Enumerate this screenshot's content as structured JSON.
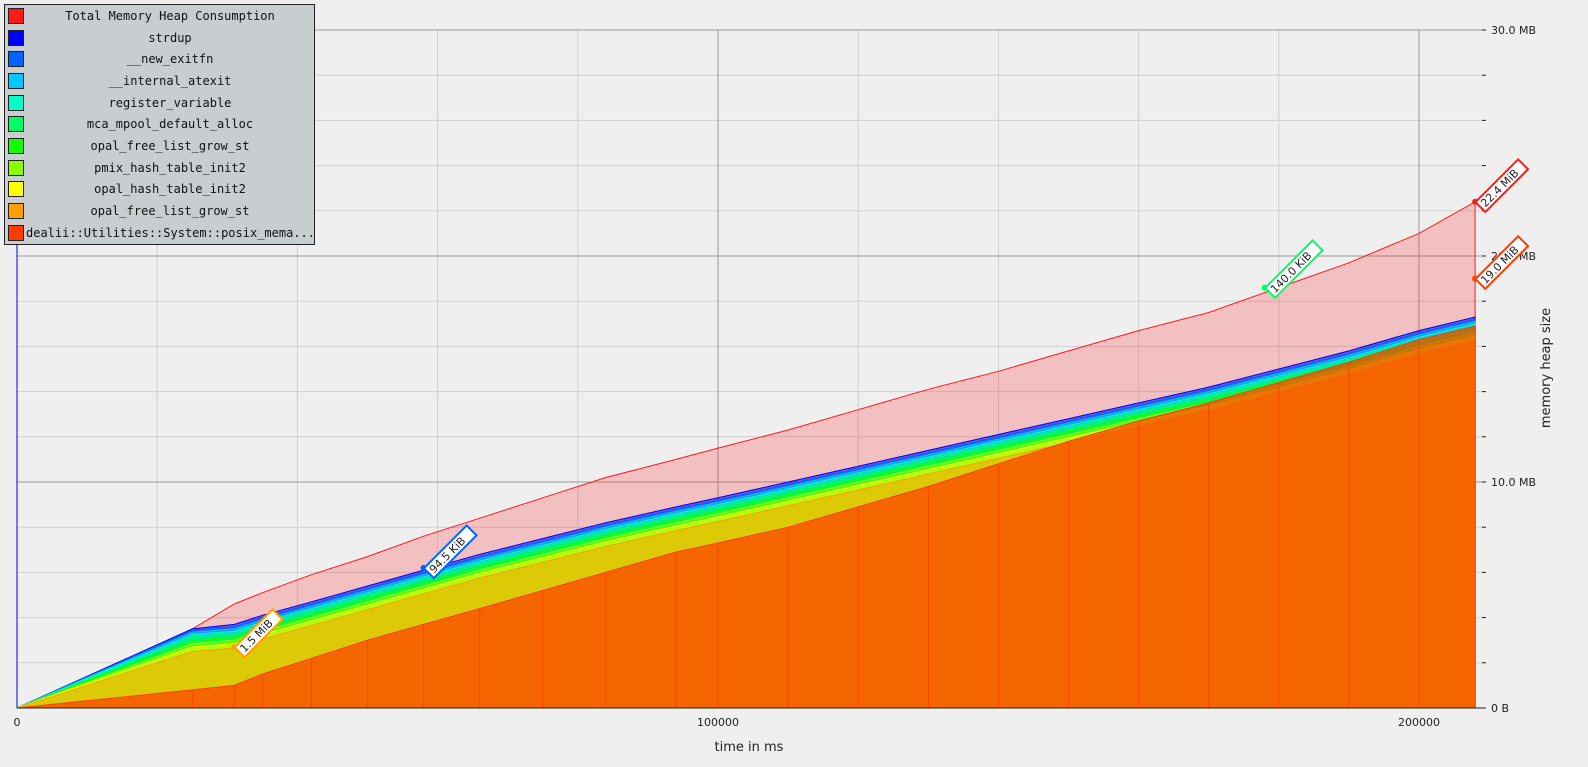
{
  "chart_data": {
    "type": "area",
    "title": "",
    "xlabel": "time in ms",
    "ylabel": "memory heap size",
    "xlim": [
      0,
      208000
    ],
    "ylim": [
      0,
      30
    ],
    "x_ticks": [
      {
        "value": 0,
        "label": "0"
      },
      {
        "value": 100000,
        "label": "100000"
      },
      {
        "value": 200000,
        "label": "200000"
      }
    ],
    "y_ticks": [
      {
        "value": 0,
        "label": "0 B"
      },
      {
        "value": 10,
        "label": "10.0 MB"
      },
      {
        "value": 20,
        "label": "20.0 MB"
      },
      {
        "value": 30,
        "label": "30.0 MB"
      }
    ],
    "grid": true,
    "legend_position": "top-left",
    "x": [
      0,
      25000,
      31000,
      35000,
      42000,
      50000,
      58000,
      66000,
      75000,
      84000,
      94000,
      100000,
      110000,
      120000,
      130000,
      140000,
      150000,
      160000,
      170000,
      180000,
      190000,
      200000,
      208000
    ],
    "series": [
      {
        "name": "Total Memory Heap Consumption",
        "color": "#ff1a1a",
        "values": [
          0,
          3.5,
          4.6,
          5.1,
          5.9,
          6.7,
          7.6,
          8.4,
          9.3,
          10.2,
          11.0,
          11.5,
          12.3,
          13.2,
          14.1,
          14.9,
          15.8,
          16.7,
          17.5,
          18.6,
          19.7,
          21.0,
          22.4
        ]
      },
      {
        "name": "strdup",
        "color": "#0000ff",
        "values": [
          0,
          3.5,
          3.7,
          4.1,
          4.7,
          5.4,
          6.1,
          6.8,
          7.5,
          8.2,
          8.9,
          9.3,
          10.0,
          10.7,
          11.4,
          12.1,
          12.8,
          13.5,
          14.2,
          15.0,
          15.8,
          16.7,
          17.3
        ]
      },
      {
        "name": "__new_exitfn",
        "color": "#0064ff",
        "values": [
          0,
          3.45,
          3.6,
          4.0,
          4.6,
          5.3,
          6.0,
          6.7,
          7.4,
          8.1,
          8.8,
          9.2,
          9.9,
          10.6,
          11.3,
          12.0,
          12.7,
          13.4,
          14.1,
          14.9,
          15.7,
          16.6,
          17.2
        ]
      },
      {
        "name": "__internal_atexit",
        "color": "#00c8ff",
        "values": [
          0,
          3.35,
          3.5,
          3.9,
          4.5,
          5.2,
          5.9,
          6.6,
          7.3,
          8.0,
          8.7,
          9.1,
          9.8,
          10.5,
          11.2,
          11.9,
          12.6,
          13.3,
          14.0,
          14.8,
          15.6,
          16.5,
          17.1
        ]
      },
      {
        "name": "register_variable",
        "color": "#00ffc8",
        "values": [
          0,
          3.25,
          3.4,
          3.8,
          4.4,
          5.1,
          5.8,
          6.5,
          7.2,
          7.9,
          8.6,
          9.0,
          9.7,
          10.4,
          11.1,
          11.8,
          12.5,
          13.2,
          13.9,
          14.7,
          15.5,
          16.4,
          17.0
        ]
      },
      {
        "name": "mca_mpool_default_alloc",
        "color": "#00ff64",
        "values": [
          0,
          3.15,
          3.3,
          3.7,
          4.3,
          5.0,
          5.7,
          6.4,
          7.1,
          7.8,
          8.5,
          8.9,
          9.6,
          10.3,
          11.0,
          11.7,
          12.4,
          13.1,
          13.8,
          14.6,
          15.4,
          16.3,
          16.9
        ]
      },
      {
        "name": "opal_free_list_grow_st",
        "color": "#14ff00",
        "values": [
          0,
          3.0,
          3.15,
          3.55,
          4.15,
          4.85,
          5.55,
          6.25,
          6.95,
          7.65,
          8.35,
          8.75,
          9.45,
          10.15,
          10.85,
          11.55,
          12.25,
          12.95,
          13.65,
          14.45,
          15.25,
          16.15,
          16.75
        ]
      },
      {
        "name": "pmix_hash_table_init2",
        "color": "#8cff00",
        "values": [
          0,
          2.85,
          3.0,
          3.4,
          4.0,
          4.7,
          5.4,
          6.1,
          6.8,
          7.5,
          8.2,
          8.6,
          9.3,
          10.0,
          10.7,
          11.4,
          12.1,
          12.8,
          13.5,
          14.3,
          15.1,
          16.0,
          16.6
        ]
      },
      {
        "name": "opal_hash_table_init2",
        "color": "#ffff00",
        "values": [
          0,
          2.7,
          2.85,
          3.25,
          3.85,
          4.55,
          5.25,
          5.95,
          6.65,
          7.35,
          8.05,
          8.45,
          9.15,
          9.85,
          10.55,
          11.25,
          11.95,
          12.65,
          13.35,
          14.15,
          14.95,
          15.85,
          16.45
        ]
      },
      {
        "name": "opal_free_list_grow_st",
        "color": "#ffa000",
        "values": [
          0,
          2.5,
          2.65,
          3.05,
          3.65,
          4.35,
          5.05,
          5.75,
          6.45,
          7.15,
          7.85,
          8.25,
          8.95,
          9.65,
          10.35,
          11.05,
          11.75,
          12.45,
          13.15,
          13.95,
          14.75,
          15.65,
          16.25
        ]
      },
      {
        "name": "dealii::Utilities::System::posix_mema...",
        "color": "#ff3c00",
        "values": [
          0,
          0.8,
          1.0,
          1.5,
          2.2,
          3.0,
          3.7,
          4.4,
          5.2,
          6.0,
          6.9,
          7.3,
          8.0,
          8.9,
          9.8,
          10.8,
          11.8,
          12.7,
          13.5,
          14.4,
          15.3,
          16.3,
          16.9
        ]
      }
    ],
    "annotations": [
      {
        "text": "22.4 MiB",
        "x": 208000,
        "y": 22.4,
        "color": "#ff1a1a"
      },
      {
        "text": "1.5 MiB",
        "x": 31000,
        "y": 2.7,
        "color": "#ffa000"
      },
      {
        "text": "94.5 KiB",
        "x": 58000,
        "y": 6.2,
        "color": "#0064ff"
      },
      {
        "text": "140.0 KiB",
        "x": 178000,
        "y": 18.6,
        "color": "#00ff64"
      },
      {
        "text": "19.0 MiB",
        "x": 208000,
        "y": 19.0,
        "color": "#ff3c00"
      }
    ]
  }
}
